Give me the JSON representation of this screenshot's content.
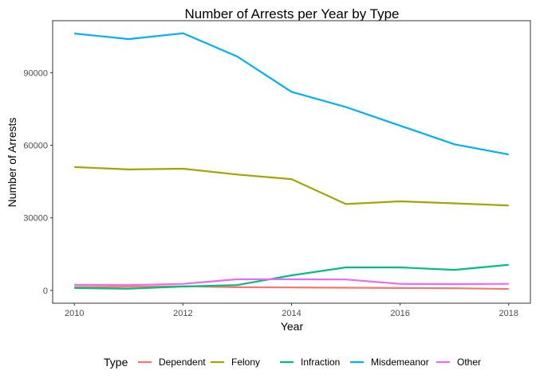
{
  "chart_data": {
    "type": "line",
    "title": "Number of Arrests per Year by Type",
    "xlabel": "Year",
    "ylabel": "Number of Arrests",
    "x": [
      2010,
      2011,
      2012,
      2013,
      2014,
      2015,
      2016,
      2017,
      2018
    ],
    "xticks": [
      2010,
      2012,
      2014,
      2016,
      2018
    ],
    "xtick_labels": [
      "2010",
      "2012",
      "2014",
      "2016",
      "2018"
    ],
    "yticks": [
      0,
      30000,
      60000,
      90000
    ],
    "ytick_labels": [
      "0",
      "30000",
      "60000",
      "90000"
    ],
    "xlim": [
      2009.6,
      2018.4
    ],
    "ylim": [
      -5300,
      111500
    ],
    "grid": false,
    "legend_position": "bottom",
    "legend_title": "Type",
    "series": [
      {
        "name": "Dependent",
        "color": "#F8766D",
        "values": [
          1400,
          1500,
          1700,
          1300,
          1200,
          1100,
          1000,
          900,
          600
        ]
      },
      {
        "name": "Felony",
        "color": "#A3A500",
        "values": [
          51000,
          50000,
          50300,
          47900,
          46000,
          35700,
          36800,
          36000,
          35100
        ]
      },
      {
        "name": "Infraction",
        "color": "#00BF7D",
        "values": [
          1000,
          700,
          1600,
          2200,
          6200,
          9500,
          9500,
          8500,
          10600
        ]
      },
      {
        "name": "Misdemeanor",
        "color": "#00B0F6",
        "values": [
          106200,
          103900,
          106300,
          96700,
          82100,
          75800,
          68100,
          60400,
          56200
        ]
      },
      {
        "name": "Other",
        "color": "#E76BF3",
        "values": [
          2300,
          2200,
          2700,
          4600,
          4600,
          4500,
          2700,
          2600,
          2700
        ]
      }
    ]
  }
}
